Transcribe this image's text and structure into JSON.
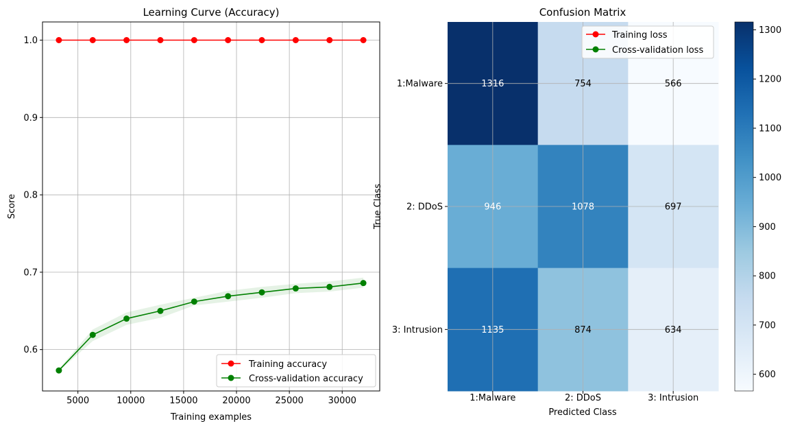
{
  "chart_data": [
    {
      "type": "line",
      "title": "Learning Curve (Accuracy)",
      "xlabel": "Training examples",
      "ylabel": "Score",
      "xlim": [
        1650,
        33550
      ],
      "ylim": [
        0.5465,
        1.0235
      ],
      "xticks": [
        5000,
        10000,
        15000,
        20000,
        25000,
        30000
      ],
      "yticks": [
        0.6,
        0.7,
        0.8,
        0.9,
        1.0
      ],
      "ytick_labels": [
        "0.6",
        "0.7",
        "0.8",
        "0.9",
        "1.0"
      ],
      "grid": true,
      "legend_position": "lower-right",
      "x": [
        3200,
        6400,
        9600,
        12800,
        16000,
        19200,
        22400,
        25600,
        28800,
        32000
      ],
      "series": [
        {
          "name": "Training accuracy",
          "color": "#ff0000",
          "marker": "circle",
          "values": [
            1.0,
            1.0,
            1.0,
            1.0,
            1.0,
            1.0,
            1.0,
            1.0,
            1.0,
            1.0
          ]
        },
        {
          "name": "Cross-validation accuracy",
          "color": "#008000",
          "marker": "circle",
          "values": [
            0.573,
            0.619,
            0.64,
            0.65,
            0.662,
            0.669,
            0.674,
            0.679,
            0.681,
            0.686
          ],
          "band_lower": [
            0.572,
            0.611,
            0.632,
            0.641,
            0.657,
            0.662,
            0.667,
            0.673,
            0.675,
            0.68
          ],
          "band_upper": [
            0.575,
            0.626,
            0.648,
            0.658,
            0.667,
            0.676,
            0.681,
            0.685,
            0.688,
            0.693
          ],
          "band_color": "#008000"
        }
      ]
    },
    {
      "type": "heatmap",
      "title": "Confusion Matrix",
      "xlabel": "Predicted Class",
      "ylabel": "True Class",
      "x_categories": [
        "1:Malware",
        "2: DDoS",
        "3: Intrusion"
      ],
      "y_categories": [
        "1:Malware",
        "2: DDoS",
        "3: Intrusion"
      ],
      "values": [
        [
          1316,
          754,
          566
        ],
        [
          946,
          1078,
          697
        ],
        [
          1135,
          874,
          634
        ]
      ],
      "colormap": "Blues",
      "colormap_stops": [
        "#f7fbff",
        "#deebf7",
        "#c6dbef",
        "#9ecae1",
        "#6baed6",
        "#4292c6",
        "#2171b5",
        "#08519c",
        "#08306b"
      ],
      "vmin": 566,
      "vmax": 1316,
      "colorbar_ticks": [
        600,
        700,
        800,
        900,
        1000,
        1100,
        1200,
        1300
      ],
      "grid": true,
      "legend_position": "upper-right",
      "legend": [
        {
          "name": "Training loss",
          "color": "#ff0000",
          "marker": "circle"
        },
        {
          "name": "Cross-validation loss",
          "color": "#008000",
          "marker": "circle"
        }
      ]
    }
  ]
}
